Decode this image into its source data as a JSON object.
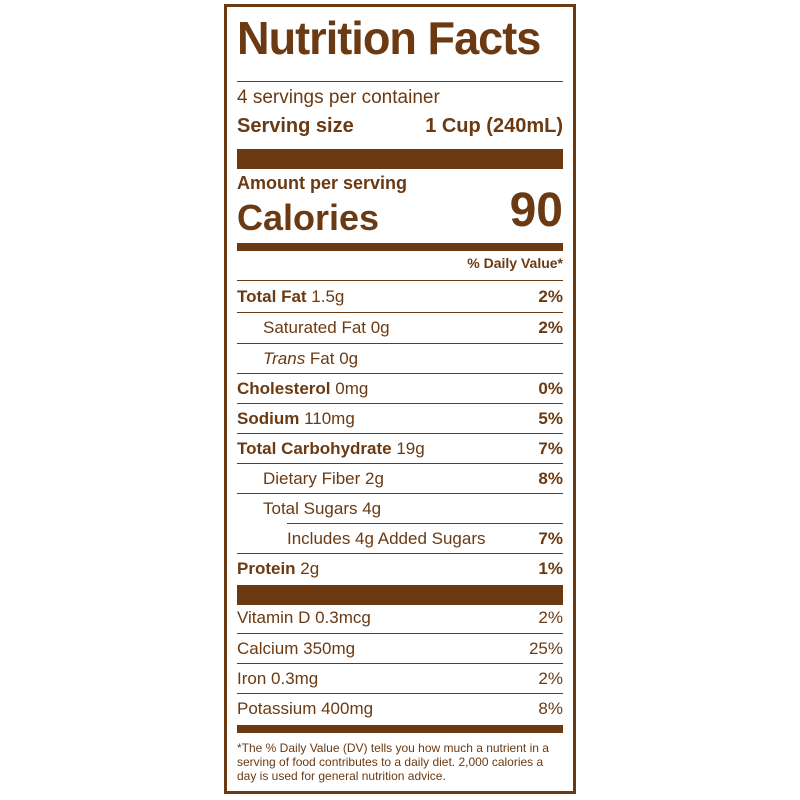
{
  "title": "Nutrition Facts",
  "servings_per_container": "4 servings per container",
  "serving_size": {
    "label": "Serving size",
    "value": "1 Cup (240mL)"
  },
  "amount_per_serving": "Amount per serving",
  "calories": {
    "label": "Calories",
    "value": "90"
  },
  "daily_value_header": "% Daily Value*",
  "nutrients": [
    {
      "name": "Total Fat",
      "amount": " 1.5g",
      "dv": "2%"
    },
    {
      "name": "Saturated Fat 0g",
      "amount": "",
      "dv": "2%"
    },
    {
      "name": "Trans",
      "amount": " Fat 0g",
      "dv": ""
    },
    {
      "name": "Cholesterol",
      "amount": " 0mg",
      "dv": "0%"
    },
    {
      "name": "Sodium",
      "amount": " 110mg",
      "dv": "5%"
    },
    {
      "name": "Total Carbohydrate",
      "amount": " 19g",
      "dv": "7%"
    },
    {
      "name": "Dietary Fiber 2g",
      "amount": "",
      "dv": "8%"
    },
    {
      "name": "Total Sugars 4g",
      "amount": "",
      "dv": ""
    },
    {
      "name": "Includes 4g Added Sugars",
      "amount": "",
      "dv": "7%"
    },
    {
      "name": "Protein",
      "amount": " 2g",
      "dv": "1%"
    }
  ],
  "vitamins": [
    {
      "name": "Vitamin D 0.3mcg",
      "dv": "2%"
    },
    {
      "name": "Calcium 350mg",
      "dv": "25%"
    },
    {
      "name": "Iron 0.3mg",
      "dv": "2%"
    },
    {
      "name": "Potassium 400mg",
      "dv": "8%"
    }
  ],
  "footnote": "*The % Daily Value (DV) tells you how much a nutrient in a serving of food contributes to a daily diet. 2,000 calories a day is used for general nutrition advice.",
  "colors": {
    "ink": "#6b3a12",
    "background": "#ffffff"
  }
}
